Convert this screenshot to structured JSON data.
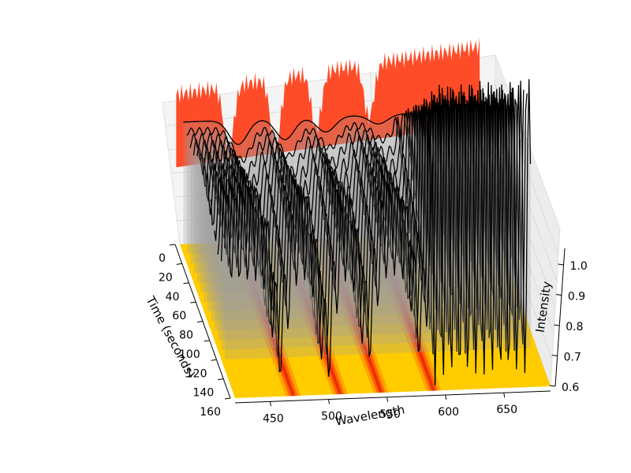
{
  "chart_data": {
    "type": "3d-waterfall",
    "title": "",
    "xlabel": "Wavelength",
    "ylabel": "Time (seconds)",
    "zlabel": "Intensity",
    "xlim": [
      420,
      690
    ],
    "ylim": [
      0,
      160
    ],
    "zlim": [
      0.6,
      1.05
    ],
    "x_ticks": [
      450,
      500,
      550,
      600,
      650
    ],
    "y_ticks": [
      0,
      20,
      40,
      60,
      80,
      100,
      120,
      140,
      160
    ],
    "z_ticks": [
      0.6,
      0.7,
      0.8,
      0.9,
      1.0
    ],
    "x_tick_labels": [
      "450",
      "500",
      "550",
      "600",
      "650"
    ],
    "y_tick_labels": [
      "0",
      "20",
      "40",
      "60",
      "80",
      "100",
      "120",
      "140",
      "160"
    ],
    "z_tick_labels": [
      "0.6",
      "0.7",
      "0.8",
      "0.9",
      "1.0"
    ],
    "series_times": [
      0,
      10,
      20,
      30,
      40,
      50,
      60,
      70,
      80,
      90,
      100,
      110,
      120
    ],
    "absorption_dips": [
      {
        "wavelength": 470,
        "depth_start": 0.08,
        "depth_end": 0.33
      },
      {
        "wavelength": 510,
        "depth_start": 0.07,
        "depth_end": 0.36
      },
      {
        "wavelength": 545,
        "depth_start": 0.05,
        "depth_end": 0.3
      },
      {
        "wavelength": 590,
        "depth_start": 0.03,
        "depth_end": 0.28
      }
    ],
    "baseline_intensity": 1.0,
    "surface_color": "#ffcc00",
    "contour_colors": [
      "#ffcc00",
      "#ff9a00",
      "#ff5a00",
      "#e8260a"
    ],
    "wall_projection_color": "#ff3a12"
  }
}
